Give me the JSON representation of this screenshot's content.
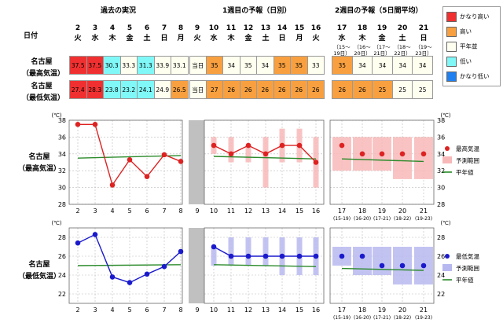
{
  "header": {
    "past_title": "過去の実況",
    "week1_title": "1週目の予報（日別）",
    "week2_title": "2週目の予報（5日間平均）",
    "date_label": "日付"
  },
  "days": [
    {
      "d": "2",
      "w": "火"
    },
    {
      "d": "3",
      "w": "水"
    },
    {
      "d": "4",
      "w": "木"
    },
    {
      "d": "5",
      "w": "金"
    },
    {
      "d": "6",
      "w": "土"
    },
    {
      "d": "7",
      "w": "日"
    },
    {
      "d": "8",
      "w": "月"
    },
    {
      "d": "9",
      "w": "火"
    },
    {
      "d": "10",
      "w": "水"
    },
    {
      "d": "11",
      "w": "木"
    },
    {
      "d": "12",
      "w": "金"
    },
    {
      "d": "13",
      "w": "土"
    },
    {
      "d": "14",
      "w": "日"
    },
    {
      "d": "15",
      "w": "月"
    },
    {
      "d": "16",
      "w": "火"
    },
    {
      "d": "17",
      "w": "水",
      "r1": "（15～",
      "r2": "19日）"
    },
    {
      "d": "18",
      "w": "木",
      "r1": "（16～",
      "r2": "20日）"
    },
    {
      "d": "19",
      "w": "金",
      "r1": "（17～",
      "r2": "21日）"
    },
    {
      "d": "20",
      "w": "土",
      "r1": "（18～",
      "r2": "22日）"
    },
    {
      "d": "21",
      "w": "日",
      "r1": "（19～",
      "r2": "23日）"
    }
  ],
  "rows": [
    {
      "label1": "名古屋",
      "label2": "（最高気温）",
      "past": [
        "37.5",
        "37.5",
        "30.3",
        "33.3",
        "31.3",
        "33.9",
        "33.1"
      ],
      "today": "当日",
      "week1": [
        "35",
        "34",
        "35",
        "34",
        "35",
        "35",
        "33"
      ],
      "week2": [
        "35",
        "34",
        "34",
        "34",
        "34"
      ]
    },
    {
      "label1": "名古屋",
      "label2": "（最低気温）",
      "past": [
        "27.4",
        "28.3",
        "23.8",
        "23.2",
        "24.1",
        "24.9",
        "26.5"
      ],
      "today": "当日",
      "week1": [
        "27",
        "26",
        "26",
        "26",
        "26",
        "26",
        "26"
      ],
      "week2": [
        "26",
        "26",
        "25",
        "25",
        "25"
      ]
    }
  ],
  "colors": {
    "much_high": "#f03030",
    "high": "#f8a040",
    "normal": "#fffff0",
    "low": "#80f8f8",
    "much_low": "#2080f0",
    "max_line": "#dd2222",
    "min_line": "#1a1acc",
    "normal_line": "#2a8a2a",
    "max_range": "#f8b8b8",
    "min_range": "#b8b8f0",
    "today_gray": "#c0c0c0"
  },
  "category_legend": [
    "かなり高い",
    "高い",
    "平年並",
    "低い",
    "かなり低い"
  ],
  "cell_classes": {
    "max_past": [
      "much_high",
      "much_high",
      "low",
      "normal",
      "low",
      "normal",
      "normal"
    ],
    "max_week1": [
      "high",
      "normal",
      "normal",
      "normal",
      "high",
      "high",
      "normal"
    ],
    "max_week2": [
      "high",
      "normal",
      "normal",
      "normal",
      "normal"
    ],
    "min_past": [
      "much_high",
      "much_high",
      "low",
      "low",
      "low",
      "normal",
      "high"
    ],
    "min_week1": [
      "high",
      "high",
      "high",
      "high",
      "high",
      "high",
      "high"
    ],
    "min_week2": [
      "high",
      "high",
      "high",
      "normal",
      "normal"
    ]
  },
  "chart_labels": {
    "max_l1": "名古屋",
    "max_l2": "（最高気温）",
    "min_l1": "名古屋",
    "min_l2": "（最低気温）",
    "unit": "(℃)",
    "max_point_legend": "最高気温",
    "min_point_legend": "最低気温",
    "range_legend": "予測範囲",
    "normal_legend": "平年値"
  },
  "chart_data": [
    {
      "type": "line",
      "title": "",
      "ylabel": "(℃)",
      "ylim": [
        28,
        38
      ],
      "yticks": [
        28,
        30,
        32,
        34,
        36,
        38
      ],
      "x": [
        "2",
        "3",
        "4",
        "5",
        "6",
        "7",
        "8",
        "9",
        "10",
        "11",
        "12",
        "13",
        "14",
        "15",
        "16",
        "17",
        "18",
        "19",
        "20",
        "21"
      ],
      "x_sublabels": [
        "",
        "",
        "",
        "",
        "",
        "",
        "",
        "",
        "",
        "",
        "",
        "",
        "",
        "",
        "",
        "(15-19)",
        "(16-20)",
        "(17-21)",
        "(18-22)",
        "(19-23)"
      ],
      "series": [
        {
          "name": "最高気温",
          "segment": "past",
          "x": [
            "2",
            "3",
            "4",
            "5",
            "6",
            "7",
            "8"
          ],
          "values": [
            37.5,
            37.5,
            30.3,
            33.3,
            31.3,
            33.9,
            33.1
          ]
        },
        {
          "name": "最高気温",
          "segment": "week1",
          "x": [
            "10",
            "11",
            "12",
            "13",
            "14",
            "15",
            "16"
          ],
          "values": [
            35,
            34,
            35,
            34,
            35,
            35,
            33
          ]
        },
        {
          "name": "最高気温",
          "segment": "week2",
          "x": [
            "17",
            "18",
            "19",
            "20",
            "21"
          ],
          "values": [
            35,
            34,
            34,
            34,
            34
          ]
        },
        {
          "name": "予測範囲",
          "segment": "week1",
          "x": [
            "10",
            "11",
            "12",
            "13",
            "14",
            "15",
            "16"
          ],
          "low": [
            34,
            33,
            33,
            30,
            33,
            33,
            30
          ],
          "high": [
            36,
            36,
            35,
            36,
            37,
            37,
            36
          ]
        },
        {
          "name": "予測範囲",
          "segment": "week2",
          "x": [
            "17",
            "18",
            "19",
            "20",
            "21"
          ],
          "low": [
            32,
            32,
            32,
            31,
            31
          ],
          "high": [
            36,
            36,
            36,
            36,
            36
          ]
        },
        {
          "name": "平年値",
          "segment": "past",
          "x": [
            "2",
            "8"
          ],
          "values": [
            33.5,
            33.8
          ]
        },
        {
          "name": "平年値",
          "segment": "week1",
          "x": [
            "10",
            "16"
          ],
          "values": [
            33.7,
            33.4
          ]
        },
        {
          "name": "平年値",
          "segment": "week2",
          "x": [
            "17",
            "21"
          ],
          "values": [
            33.4,
            33.1
          ]
        }
      ]
    },
    {
      "type": "line",
      "title": "",
      "ylabel": "(℃)",
      "ylim": [
        21,
        29
      ],
      "yticks": [
        22,
        24,
        26,
        28
      ],
      "x": [
        "2",
        "3",
        "4",
        "5",
        "6",
        "7",
        "8",
        "9",
        "10",
        "11",
        "12",
        "13",
        "14",
        "15",
        "16",
        "17",
        "18",
        "19",
        "20",
        "21"
      ],
      "x_sublabels": [
        "",
        "",
        "",
        "",
        "",
        "",
        "",
        "",
        "",
        "",
        "",
        "",
        "",
        "",
        "",
        "(15-19)",
        "(16-20)",
        "(17-21)",
        "(18-22)",
        "(19-23)"
      ],
      "series": [
        {
          "name": "最低気温",
          "segment": "past",
          "x": [
            "2",
            "3",
            "4",
            "5",
            "6",
            "7",
            "8"
          ],
          "values": [
            27.4,
            28.3,
            23.8,
            23.2,
            24.1,
            24.9,
            26.5
          ]
        },
        {
          "name": "最低気温",
          "segment": "week1",
          "x": [
            "10",
            "11",
            "12",
            "13",
            "14",
            "15",
            "16"
          ],
          "values": [
            27,
            26,
            26,
            26,
            26,
            26,
            26
          ]
        },
        {
          "name": "最低気温",
          "segment": "week2",
          "x": [
            "17",
            "18",
            "19",
            "20",
            "21"
          ],
          "values": [
            26,
            26,
            25,
            25,
            25
          ]
        },
        {
          "name": "予測範囲",
          "segment": "week1",
          "x": [
            "10",
            "11",
            "12",
            "13",
            "14",
            "15",
            "16"
          ],
          "low": [
            25,
            25,
            25,
            25,
            24,
            24,
            24
          ],
          "high": [
            27,
            28,
            28,
            28,
            28,
            28,
            28
          ]
        },
        {
          "name": "予測範囲",
          "segment": "week2",
          "x": [
            "17",
            "18",
            "19",
            "20",
            "21"
          ],
          "low": [
            25,
            24,
            24,
            23,
            23
          ],
          "high": [
            27,
            27,
            27,
            27,
            27
          ]
        },
        {
          "name": "平年値",
          "segment": "past",
          "x": [
            "2",
            "8"
          ],
          "values": [
            25.0,
            25.1
          ]
        },
        {
          "name": "平年値",
          "segment": "week1",
          "x": [
            "10",
            "16"
          ],
          "values": [
            25.1,
            24.9
          ]
        },
        {
          "name": "平年値",
          "segment": "week2",
          "x": [
            "17",
            "21"
          ],
          "values": [
            24.7,
            24.5
          ]
        }
      ]
    }
  ]
}
